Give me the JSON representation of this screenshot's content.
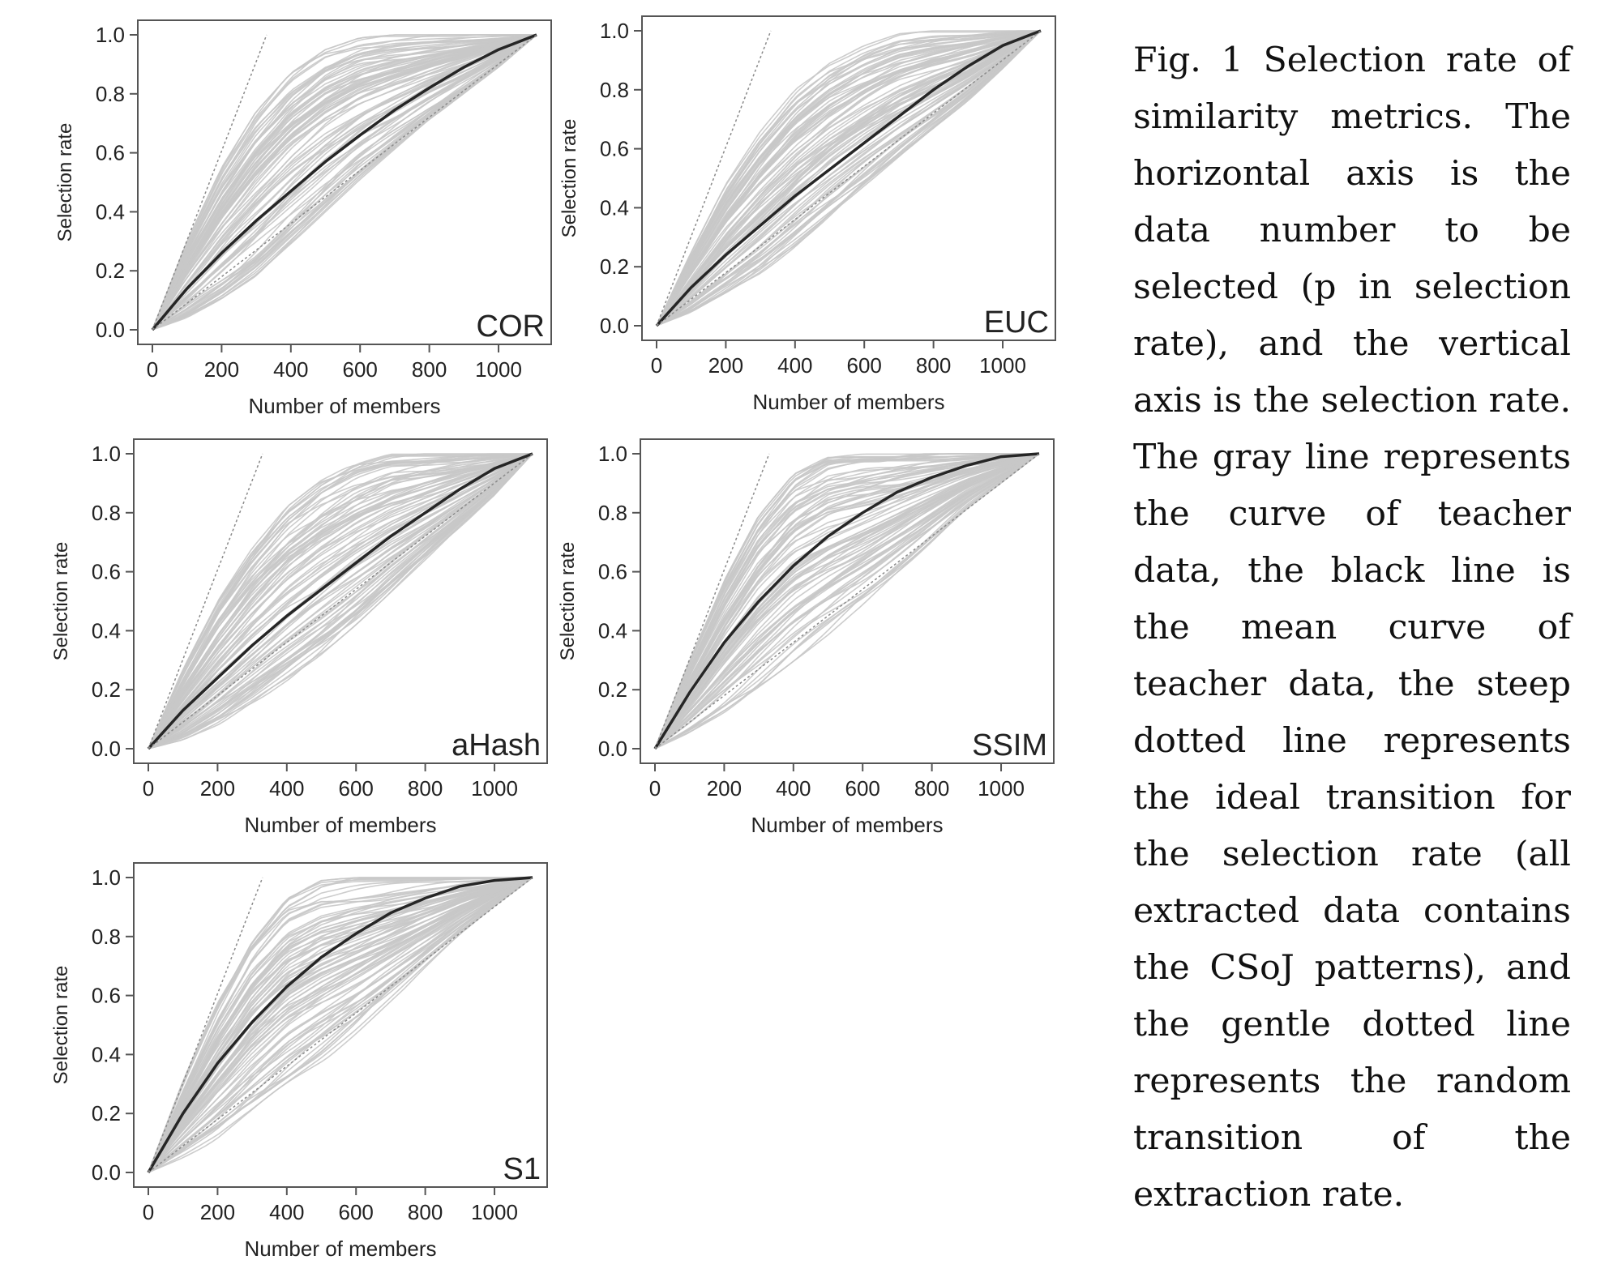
{
  "caption": "Fig. 1 Selection rate of similarity metrics. The horizontal axis is the data number to be selected (p in selection rate), and the vertical axis is the selection rate. The gray line represents the curve of teacher data, the black line is the mean curve of teacher data, the steep dotted line represents the ideal transition for the selection rate (all extracted data contains the CSoJ patterns), and the gentle dotted line represents the random transition of the extraction rate.",
  "colors": {
    "teacher_curves": "#c8c8c8",
    "mean_curve": "#262626",
    "reference_lines": "#8a8a8a",
    "frame": "#555555"
  },
  "chart_data": [
    {
      "type": "line",
      "panel_label": "COR",
      "xlabel": "Number of members",
      "ylabel": "Selection rate",
      "xlim": [
        0,
        1110
      ],
      "ylim": [
        0,
        1
      ],
      "xticks": [
        0,
        200,
        400,
        600,
        800,
        1000
      ],
      "yticks": [
        "0.0",
        "0.2",
        "0.4",
        "0.6",
        "0.8",
        "1.0"
      ],
      "grid": false,
      "series": [
        {
          "style": "mean",
          "x": [
            0,
            100,
            200,
            300,
            400,
            500,
            600,
            700,
            800,
            900,
            1000,
            1110
          ],
          "y": [
            0,
            0.14,
            0.26,
            0.37,
            0.47,
            0.57,
            0.66,
            0.745,
            0.82,
            0.89,
            0.95,
            1.0
          ]
        },
        {
          "style": "ideal",
          "x": [
            0,
            330
          ],
          "y": [
            0,
            1.0
          ]
        },
        {
          "style": "random",
          "x": [
            0,
            1110
          ],
          "y": [
            0,
            1.0
          ]
        }
      ],
      "teacher_band": {
        "x": [
          0,
          100,
          200,
          300,
          400,
          500,
          600,
          700,
          800,
          900,
          1000,
          1110
        ],
        "upper": [
          0,
          0.3,
          0.55,
          0.74,
          0.87,
          0.95,
          0.99,
          1.0,
          1.0,
          1.0,
          1.0,
          1.0
        ],
        "lower": [
          0,
          0.04,
          0.1,
          0.18,
          0.29,
          0.4,
          0.51,
          0.61,
          0.71,
          0.8,
          0.89,
          1.0
        ]
      }
    },
    {
      "type": "line",
      "panel_label": "EUC",
      "xlabel": "Number of members",
      "ylabel": "Selection rate",
      "xlim": [
        0,
        1110
      ],
      "ylim": [
        0,
        1
      ],
      "xticks": [
        0,
        200,
        400,
        600,
        800,
        1000
      ],
      "yticks": [
        "0.0",
        "0.2",
        "0.4",
        "0.6",
        "0.8",
        "1.0"
      ],
      "grid": false,
      "series": [
        {
          "style": "mean",
          "x": [
            0,
            100,
            200,
            300,
            400,
            500,
            600,
            700,
            800,
            900,
            1000,
            1110
          ],
          "y": [
            0,
            0.13,
            0.24,
            0.34,
            0.44,
            0.53,
            0.62,
            0.71,
            0.8,
            0.88,
            0.95,
            1.0
          ]
        },
        {
          "style": "ideal",
          "x": [
            0,
            330
          ],
          "y": [
            0,
            1.0
          ]
        },
        {
          "style": "random",
          "x": [
            0,
            1110
          ],
          "y": [
            0,
            1.0
          ]
        }
      ],
      "teacher_band": {
        "x": [
          0,
          100,
          200,
          300,
          400,
          500,
          600,
          700,
          800,
          900,
          1000,
          1110
        ],
        "upper": [
          0,
          0.25,
          0.48,
          0.66,
          0.8,
          0.89,
          0.95,
          0.99,
          1.0,
          1.0,
          1.0,
          1.0
        ],
        "lower": [
          0,
          0.04,
          0.1,
          0.17,
          0.26,
          0.36,
          0.46,
          0.56,
          0.66,
          0.76,
          0.87,
          1.0
        ]
      }
    },
    {
      "type": "line",
      "panel_label": "aHash",
      "xlabel": "Number of members",
      "ylabel": "Selection rate",
      "xlim": [
        0,
        1110
      ],
      "ylim": [
        0,
        1
      ],
      "xticks": [
        0,
        200,
        400,
        600,
        800,
        1000
      ],
      "yticks": [
        "0.0",
        "0.2",
        "0.4",
        "0.6",
        "0.8",
        "1.0"
      ],
      "grid": false,
      "series": [
        {
          "style": "mean",
          "x": [
            0,
            100,
            200,
            300,
            400,
            500,
            600,
            700,
            800,
            900,
            1000,
            1110
          ],
          "y": [
            0,
            0.13,
            0.24,
            0.35,
            0.45,
            0.54,
            0.63,
            0.72,
            0.8,
            0.88,
            0.95,
            1.0
          ]
        },
        {
          "style": "ideal",
          "x": [
            0,
            330
          ],
          "y": [
            0,
            1.0
          ]
        },
        {
          "style": "random",
          "x": [
            0,
            1110
          ],
          "y": [
            0,
            1.0
          ]
        }
      ],
      "teacher_band": {
        "x": [
          0,
          100,
          200,
          300,
          400,
          500,
          600,
          700,
          800,
          900,
          1000,
          1110
        ],
        "upper": [
          0,
          0.27,
          0.5,
          0.68,
          0.82,
          0.91,
          0.97,
          1.0,
          1.0,
          1.0,
          1.0,
          1.0
        ],
        "lower": [
          0,
          0.03,
          0.08,
          0.15,
          0.23,
          0.32,
          0.42,
          0.53,
          0.64,
          0.75,
          0.86,
          1.0
        ]
      }
    },
    {
      "type": "line",
      "panel_label": "SSIM",
      "xlabel": "Number of members",
      "ylabel": "Selection rate",
      "xlim": [
        0,
        1110
      ],
      "ylim": [
        0,
        1
      ],
      "xticks": [
        0,
        200,
        400,
        600,
        800,
        1000
      ],
      "yticks": [
        "0.0",
        "0.2",
        "0.4",
        "0.6",
        "0.8",
        "1.0"
      ],
      "grid": false,
      "series": [
        {
          "style": "mean",
          "x": [
            0,
            100,
            200,
            300,
            400,
            500,
            600,
            700,
            800,
            900,
            1000,
            1110
          ],
          "y": [
            0,
            0.19,
            0.36,
            0.5,
            0.62,
            0.72,
            0.8,
            0.87,
            0.92,
            0.96,
            0.99,
            1.0
          ]
        },
        {
          "style": "ideal",
          "x": [
            0,
            330
          ],
          "y": [
            0,
            1.0
          ]
        },
        {
          "style": "random",
          "x": [
            0,
            1110
          ],
          "y": [
            0,
            1.0
          ]
        }
      ],
      "teacher_band": {
        "x": [
          0,
          100,
          200,
          300,
          400,
          500,
          600,
          700,
          800,
          900,
          1000,
          1110
        ],
        "upper": [
          0,
          0.3,
          0.57,
          0.79,
          0.93,
          0.99,
          1.0,
          1.0,
          1.0,
          1.0,
          1.0,
          1.0
        ],
        "lower": [
          0,
          0.05,
          0.12,
          0.2,
          0.29,
          0.38,
          0.48,
          0.59,
          0.7,
          0.81,
          0.9,
          1.0
        ]
      }
    },
    {
      "type": "line",
      "panel_label": "S1",
      "xlabel": "Number of members",
      "ylabel": "Selection rate",
      "xlim": [
        0,
        1110
      ],
      "ylim": [
        0,
        1
      ],
      "xticks": [
        0,
        200,
        400,
        600,
        800,
        1000
      ],
      "yticks": [
        "0.0",
        "0.2",
        "0.4",
        "0.6",
        "0.8",
        "1.0"
      ],
      "grid": false,
      "series": [
        {
          "style": "mean",
          "x": [
            0,
            100,
            200,
            300,
            400,
            500,
            600,
            700,
            800,
            900,
            1000,
            1110
          ],
          "y": [
            0,
            0.2,
            0.37,
            0.51,
            0.63,
            0.73,
            0.81,
            0.88,
            0.93,
            0.97,
            0.99,
            1.0
          ]
        },
        {
          "style": "ideal",
          "x": [
            0,
            330
          ],
          "y": [
            0,
            1.0
          ]
        },
        {
          "style": "random",
          "x": [
            0,
            1110
          ],
          "y": [
            0,
            1.0
          ]
        }
      ],
      "teacher_band": {
        "x": [
          0,
          100,
          200,
          300,
          400,
          500,
          600,
          700,
          800,
          900,
          1000,
          1110
        ],
        "upper": [
          0,
          0.31,
          0.58,
          0.8,
          0.94,
          0.99,
          1.0,
          1.0,
          1.0,
          1.0,
          1.0,
          1.0
        ],
        "lower": [
          0,
          0.05,
          0.11,
          0.19,
          0.28,
          0.37,
          0.47,
          0.58,
          0.69,
          0.8,
          0.9,
          1.0
        ]
      }
    }
  ]
}
